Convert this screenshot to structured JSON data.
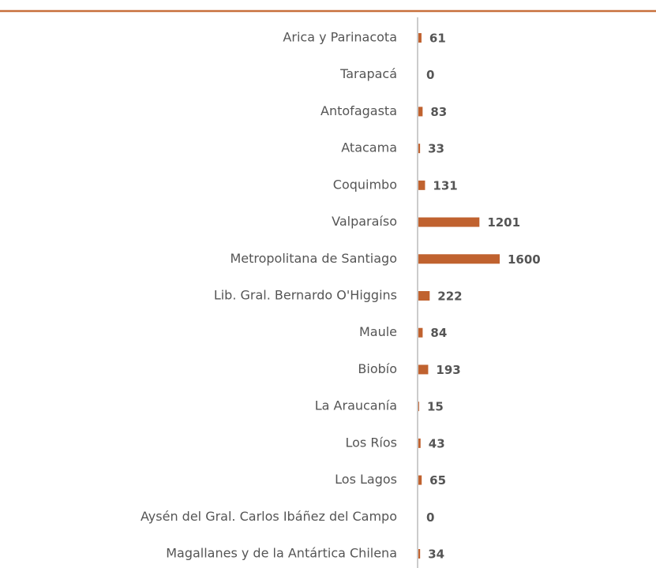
{
  "chart_data": {
    "type": "bar",
    "orientation": "horizontal",
    "categories": [
      "Arica y Parinacota",
      "Tarapacá",
      "Antofagasta",
      "Atacama",
      "Coquimbo",
      "Valparaíso",
      "Metropolitana de Santiago",
      "Lib. Gral. Bernardo O'Higgins",
      "Maule",
      "Biobío",
      "La Araucanía",
      "Los Ríos",
      "Los Lagos",
      "Aysén del Gral. Carlos Ibáñez del Campo",
      "Magallanes y de la Antártica Chilena"
    ],
    "values": [
      61,
      0,
      83,
      33,
      131,
      1201,
      1600,
      222,
      84,
      193,
      15,
      43,
      65,
      0,
      34
    ],
    "color": "#c0622f",
    "xlim": [
      0,
      1600
    ]
  }
}
